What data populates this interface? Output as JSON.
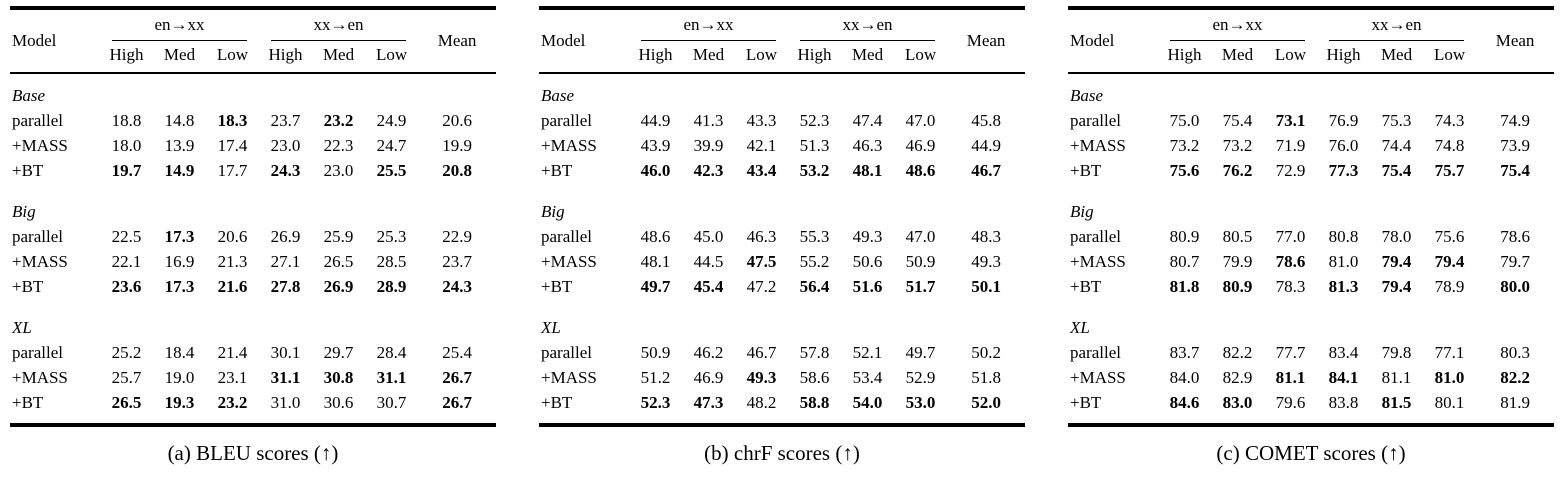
{
  "page": {
    "background": "#ffffff",
    "text_color": "#000000"
  },
  "tables": [
    {
      "caption": "(a) BLEU scores (↑)",
      "header": {
        "model": "Model",
        "groups": [
          "en→xx",
          "xx→en"
        ],
        "sub": [
          "High",
          "Med",
          "Low",
          "High",
          "Med",
          "Low"
        ],
        "mean": "Mean"
      },
      "sections": [
        {
          "name": "Base",
          "rows": [
            {
              "label": "parallel",
              "values": [
                "18.8",
                "14.8",
                "18.3",
                "23.7",
                "23.2",
                "24.9",
                "20.6"
              ],
              "bold": [
                2,
                4
              ]
            },
            {
              "label": "+MASS",
              "values": [
                "18.0",
                "13.9",
                "17.4",
                "23.0",
                "22.3",
                "24.7",
                "19.9"
              ],
              "bold": []
            },
            {
              "label": "+BT",
              "values": [
                "19.7",
                "14.9",
                "17.7",
                "24.3",
                "23.0",
                "25.5",
                "20.8"
              ],
              "bold": [
                0,
                1,
                3,
                5,
                6
              ]
            }
          ]
        },
        {
          "name": "Big",
          "rows": [
            {
              "label": "parallel",
              "values": [
                "22.5",
                "17.3",
                "20.6",
                "26.9",
                "25.9",
                "25.3",
                "22.9"
              ],
              "bold": [
                1
              ]
            },
            {
              "label": "+MASS",
              "values": [
                "22.1",
                "16.9",
                "21.3",
                "27.1",
                "26.5",
                "28.5",
                "23.7"
              ],
              "bold": []
            },
            {
              "label": "+BT",
              "values": [
                "23.6",
                "17.3",
                "21.6",
                "27.8",
                "26.9",
                "28.9",
                "24.3"
              ],
              "bold": [
                0,
                1,
                2,
                3,
                4,
                5,
                6
              ]
            }
          ]
        },
        {
          "name": "XL",
          "rows": [
            {
              "label": "parallel",
              "values": [
                "25.2",
                "18.4",
                "21.4",
                "30.1",
                "29.7",
                "28.4",
                "25.4"
              ],
              "bold": []
            },
            {
              "label": "+MASS",
              "values": [
                "25.7",
                "19.0",
                "23.1",
                "31.1",
                "30.8",
                "31.1",
                "26.7"
              ],
              "bold": [
                3,
                4,
                5,
                6
              ]
            },
            {
              "label": "+BT",
              "values": [
                "26.5",
                "19.3",
                "23.2",
                "31.0",
                "30.6",
                "30.7",
                "26.7"
              ],
              "bold": [
                0,
                1,
                2,
                6
              ]
            }
          ]
        }
      ]
    },
    {
      "caption": "(b) chrF scores (↑)",
      "header": {
        "model": "Model",
        "groups": [
          "en→xx",
          "xx→en"
        ],
        "sub": [
          "High",
          "Med",
          "Low",
          "High",
          "Med",
          "Low"
        ],
        "mean": "Mean"
      },
      "sections": [
        {
          "name": "Base",
          "rows": [
            {
              "label": "parallel",
              "values": [
                "44.9",
                "41.3",
                "43.3",
                "52.3",
                "47.4",
                "47.0",
                "45.8"
              ],
              "bold": []
            },
            {
              "label": "+MASS",
              "values": [
                "43.9",
                "39.9",
                "42.1",
                "51.3",
                "46.3",
                "46.9",
                "44.9"
              ],
              "bold": []
            },
            {
              "label": "+BT",
              "values": [
                "46.0",
                "42.3",
                "43.4",
                "53.2",
                "48.1",
                "48.6",
                "46.7"
              ],
              "bold": [
                0,
                1,
                2,
                3,
                4,
                5,
                6
              ]
            }
          ]
        },
        {
          "name": "Big",
          "rows": [
            {
              "label": "parallel",
              "values": [
                "48.6",
                "45.0",
                "46.3",
                "55.3",
                "49.3",
                "47.0",
                "48.3"
              ],
              "bold": []
            },
            {
              "label": "+MASS",
              "values": [
                "48.1",
                "44.5",
                "47.5",
                "55.2",
                "50.6",
                "50.9",
                "49.3"
              ],
              "bold": [
                2
              ]
            },
            {
              "label": "+BT",
              "values": [
                "49.7",
                "45.4",
                "47.2",
                "56.4",
                "51.6",
                "51.7",
                "50.1"
              ],
              "bold": [
                0,
                1,
                3,
                4,
                5,
                6
              ]
            }
          ]
        },
        {
          "name": "XL",
          "rows": [
            {
              "label": "parallel",
              "values": [
                "50.9",
                "46.2",
                "46.7",
                "57.8",
                "52.1",
                "49.7",
                "50.2"
              ],
              "bold": []
            },
            {
              "label": "+MASS",
              "values": [
                "51.2",
                "46.9",
                "49.3",
                "58.6",
                "53.4",
                "52.9",
                "51.8"
              ],
              "bold": [
                2
              ]
            },
            {
              "label": "+BT",
              "values": [
                "52.3",
                "47.3",
                "48.2",
                "58.8",
                "54.0",
                "53.0",
                "52.0"
              ],
              "bold": [
                0,
                1,
                3,
                4,
                5,
                6
              ]
            }
          ]
        }
      ]
    },
    {
      "caption": "(c) COMET scores (↑)",
      "header": {
        "model": "Model",
        "groups": [
          "en→xx",
          "xx→en"
        ],
        "sub": [
          "High",
          "Med",
          "Low",
          "High",
          "Med",
          "Low"
        ],
        "mean": "Mean"
      },
      "sections": [
        {
          "name": "Base",
          "rows": [
            {
              "label": "parallel",
              "values": [
                "75.0",
                "75.4",
                "73.1",
                "76.9",
                "75.3",
                "74.3",
                "74.9"
              ],
              "bold": [
                2
              ]
            },
            {
              "label": "+MASS",
              "values": [
                "73.2",
                "73.2",
                "71.9",
                "76.0",
                "74.4",
                "74.8",
                "73.9"
              ],
              "bold": []
            },
            {
              "label": "+BT",
              "values": [
                "75.6",
                "76.2",
                "72.9",
                "77.3",
                "75.4",
                "75.7",
                "75.4"
              ],
              "bold": [
                0,
                1,
                3,
                4,
                5,
                6
              ]
            }
          ]
        },
        {
          "name": "Big",
          "rows": [
            {
              "label": "parallel",
              "values": [
                "80.9",
                "80.5",
                "77.0",
                "80.8",
                "78.0",
                "75.6",
                "78.6"
              ],
              "bold": []
            },
            {
              "label": "+MASS",
              "values": [
                "80.7",
                "79.9",
                "78.6",
                "81.0",
                "79.4",
                "79.4",
                "79.7"
              ],
              "bold": [
                2,
                4,
                5
              ]
            },
            {
              "label": "+BT",
              "values": [
                "81.8",
                "80.9",
                "78.3",
                "81.3",
                "79.4",
                "78.9",
                "80.0"
              ],
              "bold": [
                0,
                1,
                3,
                4,
                6
              ]
            }
          ]
        },
        {
          "name": "XL",
          "rows": [
            {
              "label": "parallel",
              "values": [
                "83.7",
                "82.2",
                "77.7",
                "83.4",
                "79.8",
                "77.1",
                "80.3"
              ],
              "bold": []
            },
            {
              "label": "+MASS",
              "values": [
                "84.0",
                "82.9",
                "81.1",
                "84.1",
                "81.1",
                "81.0",
                "82.2"
              ],
              "bold": [
                2,
                3,
                5,
                6
              ]
            },
            {
              "label": "+BT",
              "values": [
                "84.6",
                "83.0",
                "79.6",
                "83.8",
                "81.5",
                "80.1",
                "81.9"
              ],
              "bold": [
                0,
                1,
                4
              ]
            }
          ]
        }
      ]
    }
  ]
}
